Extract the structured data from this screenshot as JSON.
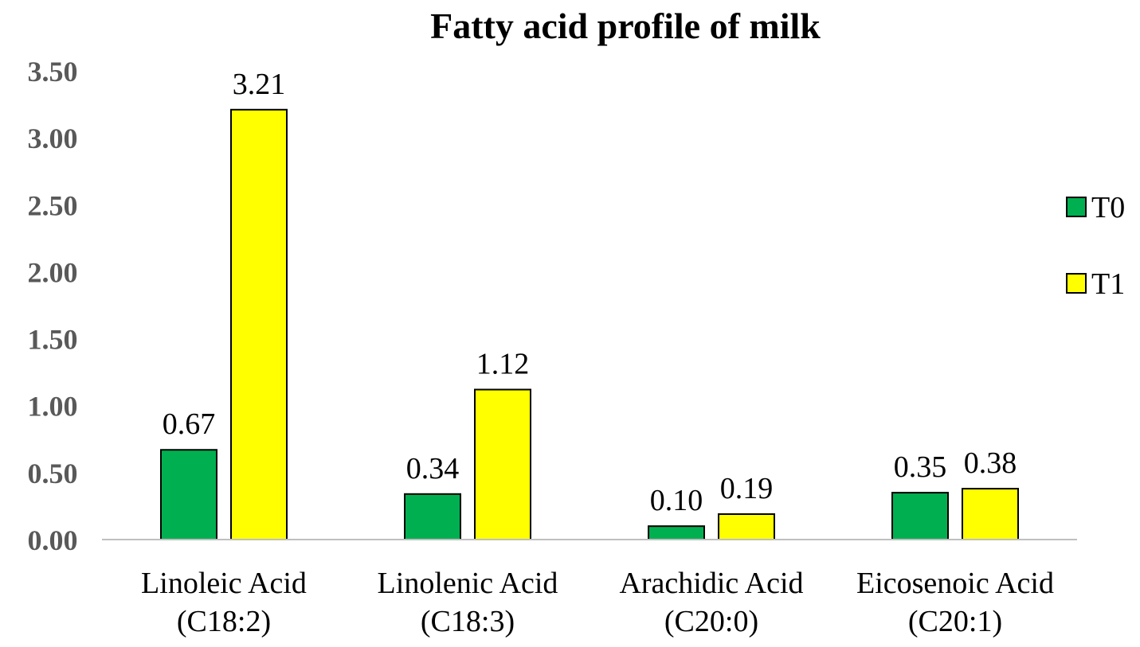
{
  "chart_data": {
    "type": "bar",
    "title": "Fatty acid profile of milk",
    "xlabel": "",
    "ylabel": "",
    "ylim": [
      0,
      3.5
    ],
    "yticks": [
      "0.00",
      "0.50",
      "1.00",
      "1.50",
      "2.00",
      "2.50",
      "3.00",
      "3.50"
    ],
    "categories": [
      [
        "Linoleic Acid",
        "(C18:2)"
      ],
      [
        "Linolenic Acid",
        "(C18:3)"
      ],
      [
        "Arachidic Acid",
        "(C20:0)"
      ],
      [
        "Eicosenoic Acid",
        "(C20:1)"
      ]
    ],
    "series": [
      {
        "name": "T0",
        "color": "#00b050",
        "values": [
          0.67,
          0.34,
          0.1,
          0.35
        ],
        "labels": [
          "0.67",
          "0.34",
          "0.10",
          "0.35"
        ]
      },
      {
        "name": "T1",
        "color": "#ffff00",
        "values": [
          3.21,
          1.12,
          0.19,
          0.38
        ],
        "labels": [
          "3.21",
          "1.12",
          "0.19",
          "0.38"
        ]
      }
    ],
    "grid": false,
    "legend_position": "right"
  }
}
